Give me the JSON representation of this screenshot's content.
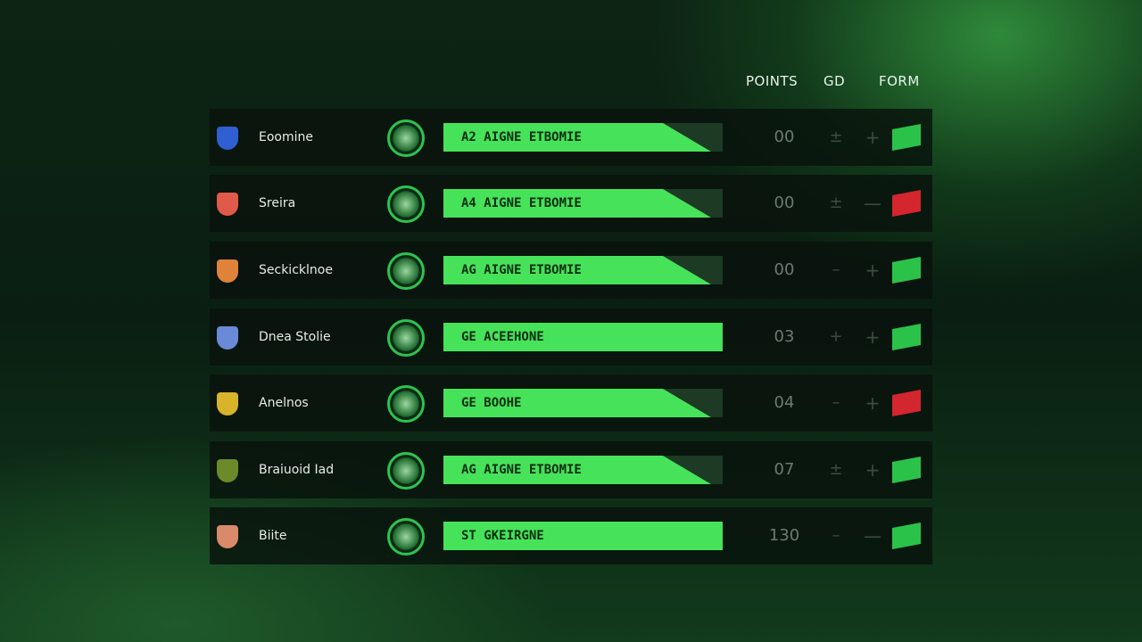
{
  "header": {
    "points": "POINTS",
    "gd": "GD",
    "form": "FORM"
  },
  "table": {
    "rows": [
      {
        "team": "Eoomine",
        "bar_label": "A2 AIGNE ETBOMIE",
        "points": "00",
        "gd": "±",
        "form": "+",
        "crest_color": "#2f5fd0",
        "form_color": "#2bc24a"
      },
      {
        "team": "Sreira",
        "bar_label": "A4 AIGNE ETBOMIE",
        "points": "00",
        "gd": "±",
        "form": "—",
        "crest_color": "#e05a4a",
        "form_color": "#d3262e"
      },
      {
        "team": "Seckicklnoe",
        "bar_label": "AG AIGNE ETBOMIE",
        "points": "00",
        "gd": "–",
        "form": "+",
        "crest_color": "#e0823a",
        "form_color": "#2bc24a"
      },
      {
        "team": "Dnea Stolie",
        "bar_label": "GE ACEEHONE",
        "points": "03",
        "gd": "+",
        "form": "+",
        "crest_color": "#6a8ad8",
        "form_color": "#2bc24a"
      },
      {
        "team": "Anelnos",
        "bar_label": "GE BOOHE",
        "points": "04",
        "gd": "–",
        "form": "+",
        "crest_color": "#d8b42a",
        "form_color": "#d3262e"
      },
      {
        "team": "Braiuoid Iad",
        "bar_label": "AG AIGNE ETBOMIE",
        "points": "07",
        "gd": "±",
        "form": "+",
        "crest_color": "#6c8a2a",
        "form_color": "#2bc24a"
      },
      {
        "team": "Biite",
        "bar_label": "ST GKEIRGNE",
        "points": "130",
        "gd": "–",
        "form": "—",
        "crest_color": "#d88a6a",
        "form_color": "#2bc24a"
      }
    ]
  }
}
